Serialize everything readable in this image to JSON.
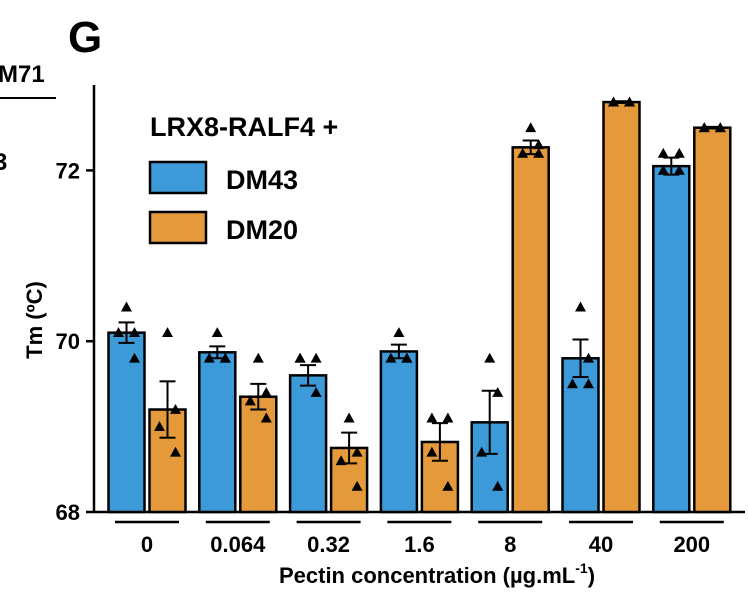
{
  "panel_label": "G",
  "fragments": {
    "top_left": "M71",
    "mid_left": "3"
  },
  "colors": {
    "DM43": "#3d9ad8",
    "DM20": "#e49a3a"
  },
  "chart_data": {
    "type": "bar",
    "categories": [
      "0",
      "0.064",
      "0.32",
      "1.6",
      "8",
      "40",
      "200"
    ],
    "legend_title": "LRX8-RALF4 +",
    "xlabel_main": "Pectin concentration (µg.mL",
    "xlabel_sup": "-1",
    "xlabel_tail": ")",
    "ylabel": "Tm (ºC)",
    "ylim": [
      68,
      73
    ],
    "yticks": [
      68,
      70,
      72
    ],
    "legend_position": "top-left",
    "series": [
      {
        "name": "DM43",
        "color": "#3d9ad8",
        "values": [
          70.1,
          69.87,
          69.6,
          69.88,
          69.05,
          69.8,
          72.05
        ],
        "errors": [
          0.12,
          0.07,
          0.12,
          0.08,
          0.37,
          0.22,
          0.1
        ],
        "points": [
          [
            70.4,
            70.1,
            70.1,
            69.8
          ],
          [
            70.1,
            69.8,
            69.8,
            69.8
          ],
          [
            69.8,
            69.8,
            69.8,
            69.4
          ],
          [
            70.1,
            69.8,
            69.8,
            69.8
          ],
          [
            69.8,
            69.4,
            68.7,
            68.3
          ],
          [
            70.4,
            69.8,
            69.5,
            69.5
          ],
          [
            72.2,
            72.2,
            72.0,
            72.0
          ]
        ]
      },
      {
        "name": "DM20",
        "color": "#e49a3a",
        "values": [
          69.2,
          69.35,
          68.75,
          68.82,
          72.27,
          72.8,
          72.5
        ],
        "errors": [
          0.33,
          0.15,
          0.18,
          0.22,
          0.08,
          0.01,
          0.01
        ],
        "points": [
          [
            70.1,
            69.2,
            69.0,
            68.7
          ],
          [
            69.8,
            69.4,
            69.3,
            69.1
          ],
          [
            69.1,
            68.7,
            68.6,
            68.3
          ],
          [
            69.1,
            69.1,
            68.7,
            68.3
          ],
          [
            72.5,
            72.3,
            72.2,
            72.2
          ],
          [
            72.8,
            72.8,
            72.8,
            72.8
          ],
          [
            72.5,
            72.5,
            72.5,
            72.5
          ]
        ]
      }
    ]
  }
}
